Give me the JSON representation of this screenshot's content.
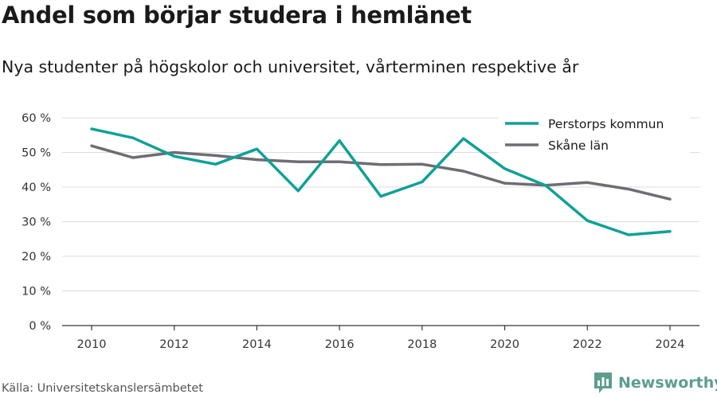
{
  "title": "Andel som börjar studera i hemlänet",
  "subtitle": "Nya studenter på högskolor och universitet, vårterminen respektive år",
  "source": "Källa: Universitetskanslersämbetet",
  "brand": {
    "name": "Newsworthy",
    "icon": "newsworthy-logo-icon",
    "color": "#5d9d90"
  },
  "chart_data": {
    "type": "line",
    "title": "Andel som börjar studera i hemlänet",
    "subtitle": "Nya studenter på högskolor och universitet, vårterminen respektive år",
    "xlabel": "",
    "ylabel": "",
    "x": [
      2010,
      2011,
      2012,
      2013,
      2014,
      2015,
      2016,
      2017,
      2018,
      2019,
      2020,
      2021,
      2022,
      2023,
      2024
    ],
    "x_ticks": [
      "2010",
      "2012",
      "2014",
      "2016",
      "2018",
      "2020",
      "2022",
      "2024"
    ],
    "y_ticks": [
      "0 %",
      "10 %",
      "20 %",
      "30 %",
      "40 %",
      "50 %",
      "60 %"
    ],
    "ylim": [
      0,
      60
    ],
    "xlim": [
      2010,
      2024
    ],
    "grid": "horizontal",
    "legend_position": "top-right",
    "series": [
      {
        "name": "Perstorps kommun",
        "color": "#0fa197",
        "values": [
          56.8,
          54.2,
          48.9,
          46.6,
          51.0,
          38.9,
          53.4,
          37.3,
          41.5,
          54.0,
          45.3,
          40.4,
          30.3,
          26.2,
          27.2
        ]
      },
      {
        "name": "Skåne län",
        "color": "#6e6d74",
        "values": [
          51.9,
          48.5,
          50.0,
          49.1,
          47.9,
          47.3,
          47.3,
          46.5,
          46.6,
          44.6,
          41.1,
          40.5,
          41.3,
          39.4,
          36.5
        ]
      }
    ]
  }
}
